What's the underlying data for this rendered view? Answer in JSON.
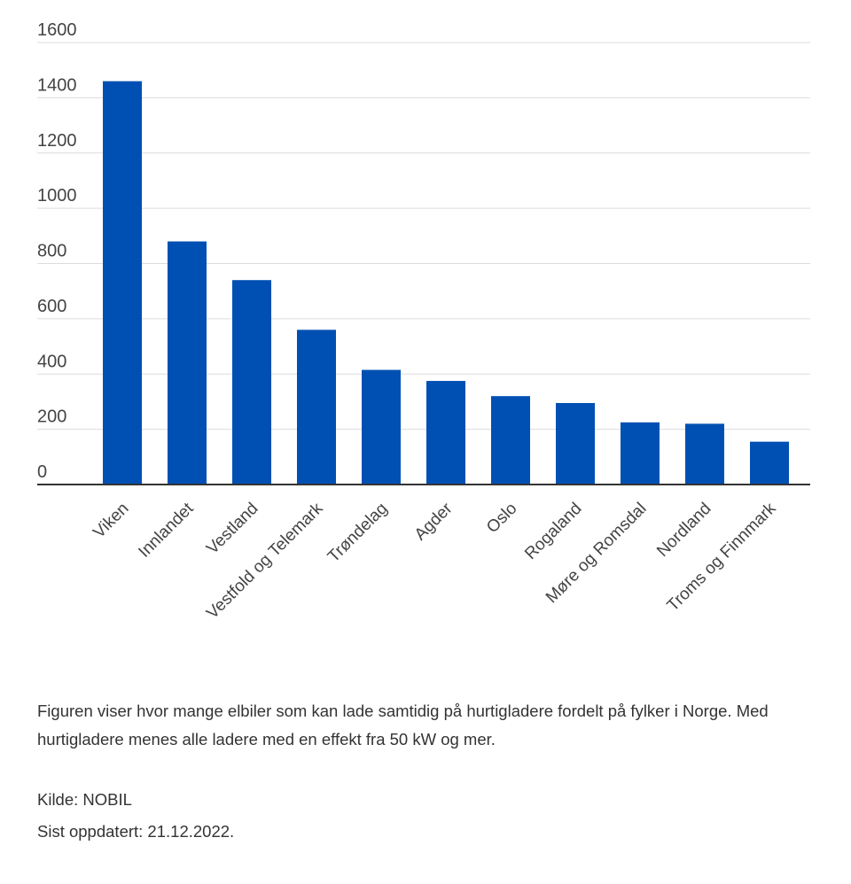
{
  "chart_data": {
    "type": "bar",
    "title": "",
    "xlabel": "",
    "ylabel": "",
    "categories": [
      "Viken",
      "Innlandet",
      "Vestland",
      "Vestfold og Telemark",
      "Trøndelag",
      "Agder",
      "Oslo",
      "Rogaland",
      "Møre og Romsdal",
      "Nordland",
      "Troms og Finnmark"
    ],
    "values": [
      1460,
      880,
      740,
      560,
      415,
      375,
      320,
      295,
      225,
      220,
      155
    ],
    "ylim": [
      0,
      1600
    ],
    "yticks": [
      "0",
      "200",
      "400",
      "600",
      "800",
      "1000",
      "1200",
      "1400",
      "1600"
    ],
    "grid": true,
    "bar_color": "#0050b3"
  },
  "caption": {
    "description": "Figuren viser hvor mange elbiler som kan lade samtidig på hurtigladere fordelt på  fylker i Norge. Med hurtigladere menes alle ladere med en effekt fra 50 kW og mer.",
    "source": "Kilde: NOBIL",
    "updated": "Sist oppdatert: 21.12.2022."
  }
}
